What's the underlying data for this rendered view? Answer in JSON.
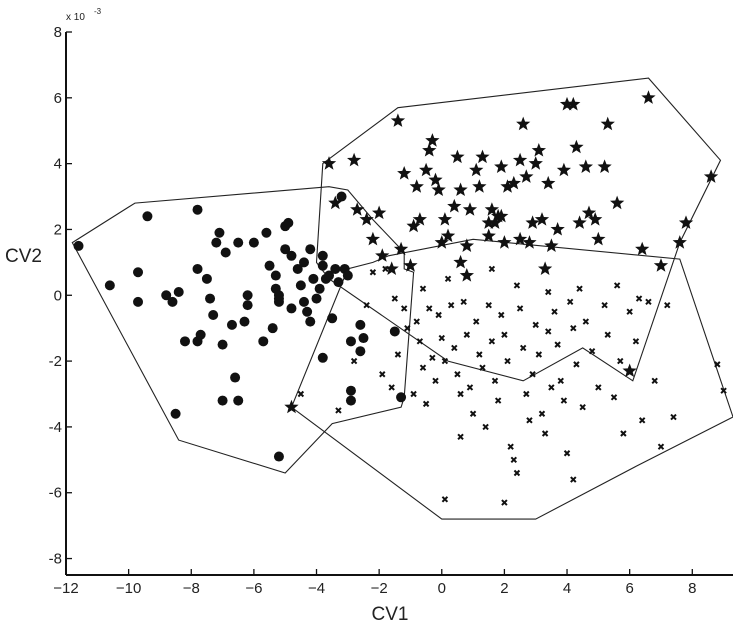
{
  "chart_data": {
    "type": "scatter",
    "title": "",
    "xlabel": "CV1",
    "ylabel": "CV2",
    "y_exponent_label": "x 10",
    "y_exponent_power": "-3",
    "xlim": [
      -12,
      9.3
    ],
    "ylim": [
      -8.5,
      8
    ],
    "xticks": [
      -12,
      -10,
      -8,
      -6,
      -4,
      -2,
      0,
      2,
      4,
      6,
      8
    ],
    "xtick_labels": [
      "−12",
      "−10",
      "−8",
      "−6",
      "−4",
      "−2",
      "0",
      "2",
      "4",
      "6",
      "8"
    ],
    "yticks": [
      -8,
      -6,
      -4,
      -2,
      0,
      2,
      4,
      6,
      8
    ],
    "ytick_labels": [
      "-8",
      "-6",
      "-4",
      "-2",
      "0",
      "2",
      "4",
      "6",
      "8"
    ],
    "grid": false,
    "series": [
      {
        "marker": "circle",
        "points": [
          [
            -11.6,
            1.5
          ],
          [
            -10.6,
            0.3
          ],
          [
            -9.7,
            0.7
          ],
          [
            -9.4,
            2.4
          ],
          [
            -9.7,
            -0.2
          ],
          [
            -8.8,
            0
          ],
          [
            -8.6,
            -0.2
          ],
          [
            -8.4,
            0.1
          ],
          [
            -8.5,
            -3.6
          ],
          [
            -8.2,
            -1.4
          ],
          [
            -7.8,
            -1.4
          ],
          [
            -7.7,
            -1.2
          ],
          [
            -7.8,
            2.6
          ],
          [
            -7.8,
            0.8
          ],
          [
            -7.5,
            0.5
          ],
          [
            -7.4,
            -0.1
          ],
          [
            -7.3,
            -0.6
          ],
          [
            -7.2,
            1.6
          ],
          [
            -7.1,
            1.9
          ],
          [
            -7.0,
            -1.5
          ],
          [
            -7.0,
            -3.2
          ],
          [
            -6.9,
            1.3
          ],
          [
            -6.7,
            -0.9
          ],
          [
            -6.6,
            -2.5
          ],
          [
            -6.5,
            -3.2
          ],
          [
            -6.5,
            1.6
          ],
          [
            -6.3,
            -0.8
          ],
          [
            -6.2,
            -0.3
          ],
          [
            -6.2,
            0
          ],
          [
            -6.0,
            1.6
          ],
          [
            -5.7,
            -1.4
          ],
          [
            -5.6,
            1.9
          ],
          [
            -5.5,
            0.9
          ],
          [
            -5.4,
            -1.0
          ],
          [
            -5.3,
            0.2
          ],
          [
            -5.3,
            0.6
          ],
          [
            -5.2,
            -0.2
          ],
          [
            -5.2,
            -0.1
          ],
          [
            -5.2,
            -4.9
          ],
          [
            -5.0,
            1.4
          ],
          [
            -5.0,
            2.1
          ],
          [
            -4.9,
            2.2
          ],
          [
            -4.8,
            -0.4
          ],
          [
            -4.8,
            1.2
          ],
          [
            -4.6,
            0.8
          ],
          [
            -4.5,
            0.3
          ],
          [
            -4.4,
            1.0
          ],
          [
            -4.4,
            -0.2
          ],
          [
            -4.3,
            -0.5
          ],
          [
            -4.2,
            -0.8
          ],
          [
            -4.2,
            1.4
          ],
          [
            -4.1,
            0.5
          ],
          [
            -4.0,
            -0.1
          ],
          [
            -3.9,
            0.2
          ],
          [
            -3.8,
            0.9
          ],
          [
            -3.8,
            1.2
          ],
          [
            -3.7,
            0.5
          ],
          [
            -3.6,
            0.6
          ],
          [
            -3.5,
            -0.7
          ],
          [
            -3.4,
            0.8
          ],
          [
            -3.3,
            0.4
          ],
          [
            -3.2,
            3.0
          ],
          [
            -3.1,
            0.8
          ],
          [
            -3.0,
            0.6
          ],
          [
            -2.9,
            -1.4
          ],
          [
            -2.9,
            -2.9
          ],
          [
            -2.9,
            -3.2
          ],
          [
            -2.6,
            -0.9
          ],
          [
            -2.6,
            -1.7
          ],
          [
            -2.5,
            -1.3
          ],
          [
            -3.8,
            -1.9
          ],
          [
            -1.5,
            -1.1
          ],
          [
            -1.3,
            -3.1
          ],
          [
            -5.2,
            0.0
          ]
        ]
      },
      {
        "marker": "star",
        "points": [
          [
            -4.8,
            -3.4
          ],
          [
            -3.6,
            4.0
          ],
          [
            -2.8,
            4.1
          ],
          [
            -2.7,
            2.6
          ],
          [
            -2.4,
            2.3
          ],
          [
            -2.2,
            1.7
          ],
          [
            -1.9,
            1.2
          ],
          [
            -1.6,
            0.8
          ],
          [
            -1.3,
            1.4
          ],
          [
            -1.4,
            5.3
          ],
          [
            -1.2,
            3.7
          ],
          [
            -1.0,
            0.9
          ],
          [
            -0.9,
            2.1
          ],
          [
            -0.8,
            3.3
          ],
          [
            -0.7,
            2.3
          ],
          [
            -0.5,
            3.8
          ],
          [
            -0.4,
            4.4
          ],
          [
            -0.3,
            4.7
          ],
          [
            -0.2,
            3.5
          ],
          [
            -0.1,
            3.2
          ],
          [
            0.0,
            1.6
          ],
          [
            0.1,
            2.3
          ],
          [
            0.2,
            1.8
          ],
          [
            0.4,
            2.7
          ],
          [
            0.5,
            4.2
          ],
          [
            0.6,
            3.2
          ],
          [
            0.8,
            1.5
          ],
          [
            0.9,
            2.6
          ],
          [
            1.1,
            3.8
          ],
          [
            1.2,
            3.3
          ],
          [
            1.3,
            4.2
          ],
          [
            1.5,
            2.2
          ],
          [
            1.6,
            2.6
          ],
          [
            1.7,
            2.2
          ],
          [
            1.8,
            2.4
          ],
          [
            1.9,
            3.9
          ],
          [
            2.0,
            1.6
          ],
          [
            2.1,
            3.3
          ],
          [
            2.3,
            3.4
          ],
          [
            2.5,
            1.7
          ],
          [
            2.5,
            4.1
          ],
          [
            2.6,
            5.2
          ],
          [
            2.7,
            3.6
          ],
          [
            2.9,
            2.2
          ],
          [
            3.0,
            4.0
          ],
          [
            3.1,
            4.4
          ],
          [
            3.2,
            2.3
          ],
          [
            3.3,
            0.8
          ],
          [
            3.5,
            1.5
          ],
          [
            3.7,
            2.0
          ],
          [
            3.9,
            3.8
          ],
          [
            4.0,
            5.8
          ],
          [
            4.2,
            5.8
          ],
          [
            4.3,
            4.5
          ],
          [
            4.4,
            2.2
          ],
          [
            4.6,
            3.9
          ],
          [
            4.7,
            2.5
          ],
          [
            4.9,
            2.3
          ],
          [
            5.0,
            1.7
          ],
          [
            5.2,
            3.9
          ],
          [
            5.3,
            5.2
          ],
          [
            5.6,
            2.8
          ],
          [
            6.0,
            -2.3
          ],
          [
            6.4,
            1.4
          ],
          [
            6.6,
            6.0
          ],
          [
            7.0,
            0.9
          ],
          [
            7.6,
            1.6
          ],
          [
            7.8,
            2.2
          ],
          [
            8.6,
            3.6
          ],
          [
            -3.4,
            2.8
          ],
          [
            -2.0,
            2.5
          ],
          [
            0.8,
            0.6
          ],
          [
            0.6,
            1.0
          ],
          [
            1.5,
            1.8
          ],
          [
            2.8,
            1.6
          ],
          [
            3.4,
            3.4
          ],
          [
            1.9,
            2.4
          ]
        ]
      },
      {
        "marker": "x",
        "points": [
          [
            -4.5,
            -3.0
          ],
          [
            -3.3,
            -3.5
          ],
          [
            -2.8,
            -2.0
          ],
          [
            -2.2,
            0.7
          ],
          [
            -1.8,
            0.8
          ],
          [
            -1.9,
            -2.4
          ],
          [
            -1.6,
            -2.8
          ],
          [
            -1.4,
            -1.8
          ],
          [
            -1.1,
            -1.0
          ],
          [
            -0.9,
            -3.0
          ],
          [
            -0.8,
            -0.8
          ],
          [
            -0.7,
            -1.4
          ],
          [
            -0.6,
            -2.2
          ],
          [
            -0.5,
            -3.3
          ],
          [
            -0.4,
            -0.4
          ],
          [
            -0.3,
            -1.9
          ],
          [
            -0.2,
            -2.6
          ],
          [
            -0.1,
            -0.6
          ],
          [
            0.0,
            -1.3
          ],
          [
            0.1,
            -2.0
          ],
          [
            0.1,
            -6.2
          ],
          [
            0.3,
            -0.3
          ],
          [
            0.4,
            -1.6
          ],
          [
            0.5,
            -2.4
          ],
          [
            0.6,
            -3.0
          ],
          [
            0.7,
            -0.2
          ],
          [
            0.8,
            -1.2
          ],
          [
            0.9,
            -2.8
          ],
          [
            1.0,
            -3.6
          ],
          [
            1.1,
            -0.8
          ],
          [
            1.2,
            -1.8
          ],
          [
            1.3,
            -2.2
          ],
          [
            1.4,
            -4.0
          ],
          [
            1.5,
            -0.3
          ],
          [
            1.6,
            -1.4
          ],
          [
            1.7,
            -2.6
          ],
          [
            1.8,
            -3.2
          ],
          [
            1.9,
            -0.6
          ],
          [
            2.0,
            -1.2
          ],
          [
            2.1,
            -2.0
          ],
          [
            2.2,
            -4.6
          ],
          [
            2.3,
            -5.0
          ],
          [
            2.4,
            -5.4
          ],
          [
            2.5,
            -0.4
          ],
          [
            2.6,
            -1.6
          ],
          [
            2.7,
            -3.0
          ],
          [
            2.8,
            -3.8
          ],
          [
            2.9,
            -2.4
          ],
          [
            3.0,
            -0.9
          ],
          [
            3.1,
            -1.8
          ],
          [
            3.2,
            -3.6
          ],
          [
            3.3,
            -4.2
          ],
          [
            3.4,
            -1.1
          ],
          [
            3.5,
            -2.8
          ],
          [
            3.6,
            -0.5
          ],
          [
            3.7,
            -1.5
          ],
          [
            3.8,
            -2.6
          ],
          [
            3.9,
            -3.2
          ],
          [
            4.0,
            -4.8
          ],
          [
            4.1,
            -0.2
          ],
          [
            4.2,
            -1.0
          ],
          [
            4.3,
            -2.1
          ],
          [
            4.5,
            -3.4
          ],
          [
            4.6,
            -0.8
          ],
          [
            4.8,
            -1.7
          ],
          [
            5.0,
            -2.8
          ],
          [
            5.2,
            -0.3
          ],
          [
            5.3,
            -1.2
          ],
          [
            5.5,
            -3.1
          ],
          [
            5.7,
            -2.0
          ],
          [
            5.8,
            -4.2
          ],
          [
            6.0,
            -0.5
          ],
          [
            6.2,
            -1.4
          ],
          [
            6.4,
            -3.8
          ],
          [
            6.6,
            -0.2
          ],
          [
            6.8,
            -2.6
          ],
          [
            7.0,
            -4.6
          ],
          [
            7.2,
            -0.3
          ],
          [
            7.4,
            -3.7
          ],
          [
            8.8,
            -2.1
          ],
          [
            9.0,
            -2.9
          ],
          [
            -1.2,
            -0.4
          ],
          [
            -0.6,
            0.2
          ],
          [
            0.2,
            0.5
          ],
          [
            1.6,
            0.8
          ],
          [
            2.4,
            0.3
          ],
          [
            3.4,
            0.1
          ],
          [
            4.4,
            0.2
          ],
          [
            5.6,
            0.3
          ],
          [
            6.3,
            -0.1
          ],
          [
            -2.4,
            -0.3
          ],
          [
            -1.5,
            -0.1
          ],
          [
            0.6,
            -4.3
          ],
          [
            2.0,
            -6.3
          ],
          [
            4.2,
            -5.6
          ]
        ]
      }
    ],
    "hulls": [
      [
        [
          -11.8,
          1.6
        ],
        [
          -9.8,
          2.8
        ],
        [
          -3.6,
          3.3
        ],
        [
          -3.0,
          3.2
        ],
        [
          -2.2,
          2.3
        ],
        [
          -1.2,
          1.3
        ],
        [
          -1.2,
          0.8
        ],
        [
          -0.9,
          0.7
        ],
        [
          -1.2,
          -3.1
        ],
        [
          -1.3,
          -3.4
        ],
        [
          -3.5,
          -3.9
        ],
        [
          -5.0,
          -5.4
        ],
        [
          -8.4,
          -4.4
        ]
      ],
      [
        [
          -3.8,
          4.0
        ],
        [
          -1.4,
          5.7
        ],
        [
          6.6,
          6.6
        ],
        [
          8.9,
          4.1
        ],
        [
          7.6,
          1.6
        ],
        [
          6.1,
          -2.6
        ],
        [
          4.5,
          -1.6
        ],
        [
          2.6,
          -2.6
        ],
        [
          0.2,
          -2.0
        ],
        [
          -3.6,
          0.5
        ],
        [
          -4.0,
          1.0
        ]
      ],
      [
        [
          -4.8,
          -3.4
        ],
        [
          -3.0,
          0.8
        ],
        [
          -2.2,
          1.0
        ],
        [
          -1.7,
          1.2
        ],
        [
          1.0,
          1.7
        ],
        [
          7.6,
          1.1
        ],
        [
          9.3,
          -3.7
        ],
        [
          6.2,
          -5.2
        ],
        [
          3.0,
          -6.8
        ],
        [
          0.0,
          -6.8
        ]
      ]
    ]
  }
}
